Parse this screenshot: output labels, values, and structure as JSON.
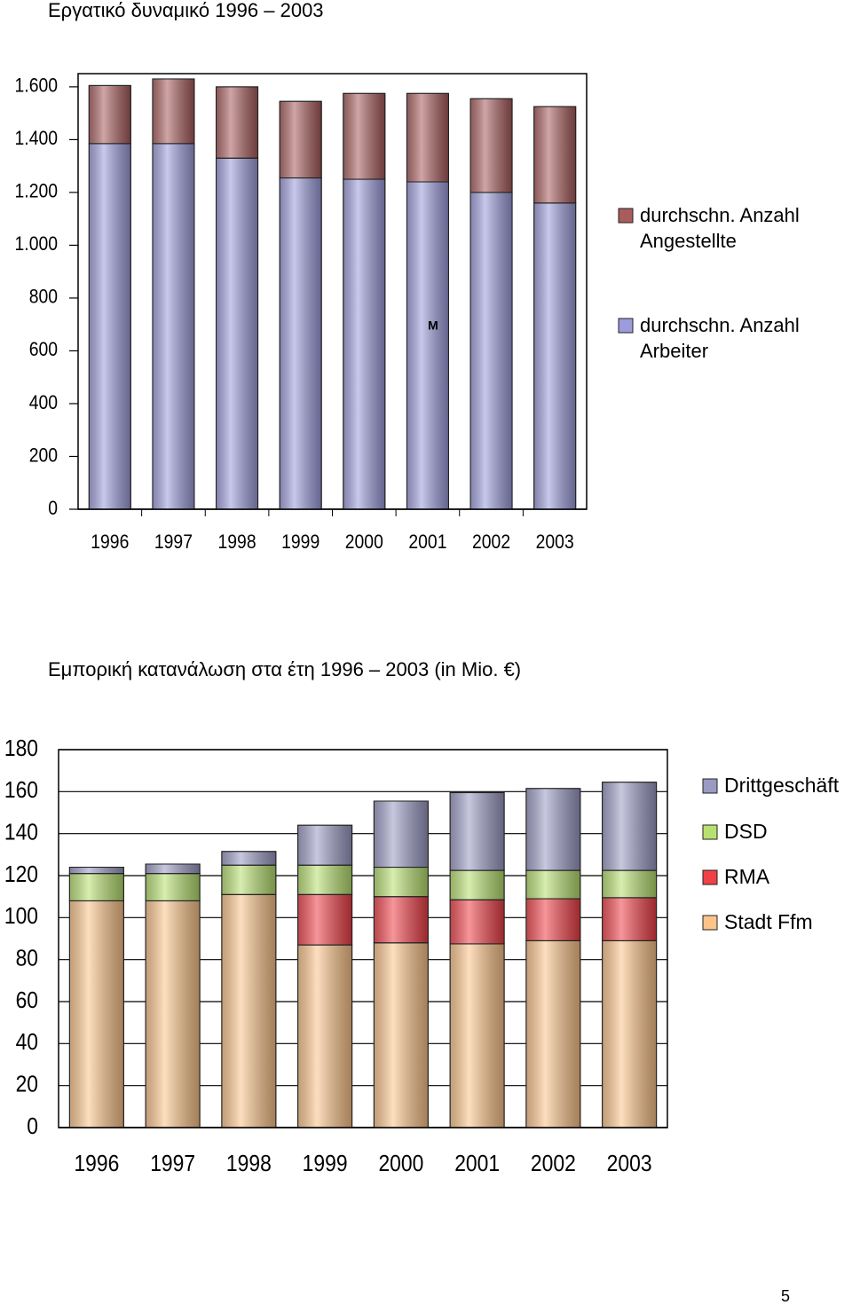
{
  "chart_data": [
    {
      "type": "bar",
      "stacked": true,
      "title": "Εργατικό δυναμικό 1996 – 2003",
      "categories": [
        "1996",
        "1997",
        "1998",
        "1999",
        "2000",
        "2001",
        "2002",
        "2003"
      ],
      "series": [
        {
          "name": "durchschn. Anzahl Arbeiter",
          "color": "#9c9cdc",
          "values": [
            1385,
            1385,
            1330,
            1255,
            1250,
            1240,
            1200,
            1160
          ]
        },
        {
          "name": "durchschn. Anzahl Angestellte",
          "color": "#a85c5c",
          "values": [
            220,
            245,
            270,
            290,
            325,
            335,
            355,
            365
          ]
        }
      ],
      "annotations": [
        "M"
      ],
      "ylim": [
        0,
        1650
      ],
      "yticks": [
        0,
        200,
        400,
        600,
        800,
        {
          "value": 1000,
          "label": "1.000"
        },
        {
          "value": 1200,
          "label": "1.200"
        },
        {
          "value": 1400,
          "label": "1.400"
        },
        {
          "value": 1600,
          "label": "1.600"
        }
      ],
      "grid": false,
      "legend": "right"
    },
    {
      "type": "bar",
      "stacked": true,
      "title": "Εμπορική κατανάλωση στα έτη 1996 – 2003 (in Mio. €)",
      "categories": [
        "1996",
        "1997",
        "1998",
        "1999",
        "2000",
        "2001",
        "2002",
        "2003"
      ],
      "series": [
        {
          "name": "Stadt Ffm",
          "color": "#fcc48a",
          "values": [
            108,
            108,
            111,
            87,
            88,
            87.5,
            89,
            89
          ]
        },
        {
          "name": "RMA",
          "color": "#f04048",
          "values": [
            0,
            0,
            0,
            24,
            22,
            21,
            20,
            20.5
          ]
        },
        {
          "name": "DSD",
          "color": "#b8e070",
          "values": [
            13,
            13,
            14,
            14,
            14,
            14,
            13.5,
            13
          ]
        },
        {
          "name": "Drittgeschäft",
          "color": "#9a9ac4",
          "values": [
            3,
            4.5,
            6.5,
            19,
            31.5,
            37,
            39,
            42
          ]
        }
      ],
      "ylim": [
        0,
        180
      ],
      "yticks": [
        0,
        20,
        40,
        60,
        80,
        100,
        120,
        140,
        160,
        180
      ],
      "grid": true,
      "legend": "right"
    }
  ],
  "page_number": "5"
}
